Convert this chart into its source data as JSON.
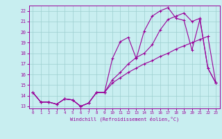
{
  "xlabel": "Windchill (Refroidissement éolien,°C)",
  "bg_color": "#c8eef0",
  "line_color": "#990099",
  "grid_color": "#9ecfcf",
  "ylim": [
    12.8,
    22.5
  ],
  "xlim": [
    -0.5,
    23.5
  ],
  "yticks": [
    13,
    14,
    15,
    16,
    17,
    18,
    19,
    20,
    21,
    22
  ],
  "xticks": [
    0,
    1,
    2,
    3,
    4,
    5,
    6,
    7,
    8,
    9,
    10,
    11,
    12,
    13,
    14,
    15,
    16,
    17,
    18,
    19,
    20,
    21,
    22,
    23
  ],
  "series1_x": [
    0,
    1,
    2,
    3,
    4,
    5,
    6,
    7,
    8,
    9,
    10,
    11,
    12,
    13,
    14,
    15,
    16,
    17,
    18,
    19,
    20,
    21,
    22,
    23
  ],
  "series1_y": [
    14.3,
    13.4,
    13.4,
    13.2,
    13.7,
    13.6,
    13.0,
    13.3,
    14.3,
    14.3,
    17.5,
    19.1,
    19.5,
    17.5,
    20.1,
    21.5,
    22.0,
    22.3,
    21.3,
    21.1,
    18.3,
    21.2,
    16.6,
    15.2
  ],
  "series2_x": [
    0,
    1,
    2,
    3,
    4,
    5,
    6,
    7,
    8,
    9,
    10,
    11,
    12,
    13,
    14,
    15,
    16,
    17,
    18,
    19,
    20,
    21,
    22,
    23
  ],
  "series2_y": [
    14.3,
    13.4,
    13.4,
    13.2,
    13.7,
    13.6,
    13.0,
    13.3,
    14.3,
    14.3,
    15.2,
    15.7,
    16.2,
    16.6,
    17.0,
    17.3,
    17.7,
    18.0,
    18.4,
    18.7,
    19.0,
    19.3,
    19.6,
    15.2
  ],
  "series3_x": [
    0,
    1,
    2,
    3,
    4,
    5,
    6,
    7,
    8,
    9,
    10,
    11,
    12,
    13,
    14,
    15,
    16,
    17,
    18,
    19,
    20,
    21,
    22,
    23
  ],
  "series3_y": [
    14.3,
    13.4,
    13.4,
    13.2,
    13.7,
    13.6,
    13.0,
    13.3,
    14.3,
    14.3,
    15.5,
    16.2,
    17.0,
    17.6,
    18.0,
    18.8,
    20.2,
    21.2,
    21.5,
    21.8,
    21.0,
    21.3,
    16.6,
    15.2
  ]
}
